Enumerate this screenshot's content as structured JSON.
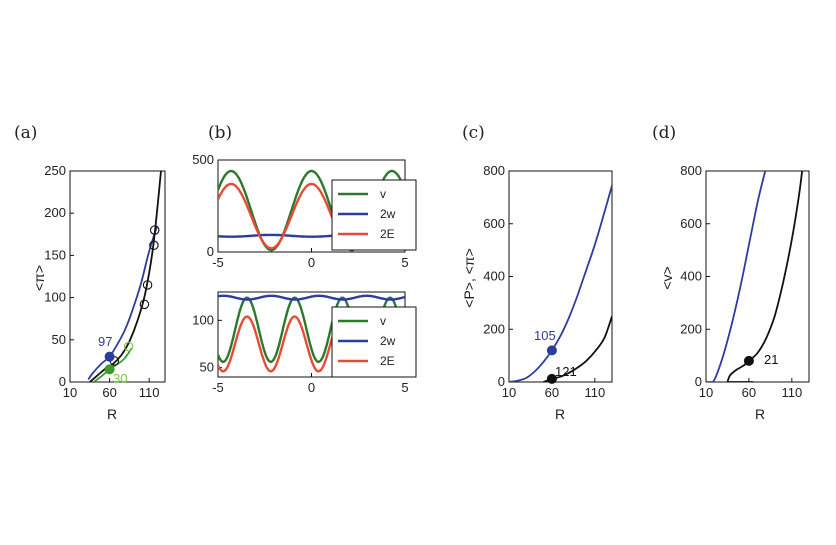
{
  "panel_labels": [
    "(a)",
    "(b)",
    "(c)",
    "(d)"
  ],
  "colors": {
    "black": "#111111",
    "blue": "#2c3d9e",
    "green": "#3f9a2f",
    "light_green": "#77c64a",
    "dark_green": "#2a7a2a",
    "red": "#e84a38"
  },
  "chart_data": [
    {
      "id": "a",
      "type": "line",
      "xlabel": "R",
      "ylabel": "<π>",
      "xlim": [
        10,
        130
      ],
      "ylim": [
        0,
        250
      ],
      "xticks": [
        10,
        60,
        110
      ],
      "yticks": [
        0,
        50,
        100,
        150,
        200,
        250
      ],
      "series": [
        {
          "color": "blue",
          "x": [
            33,
            40,
            50,
            60,
            70,
            80,
            90,
            100,
            110,
            120
          ],
          "y": [
            3,
            12,
            22,
            30,
            45,
            63,
            88,
            118,
            155,
            185
          ]
        },
        {
          "color": "black",
          "x": [
            35,
            45,
            55,
            65,
            75,
            85,
            95,
            105,
            115,
            125
          ],
          "y": [
            0,
            8,
            16,
            22,
            32,
            48,
            72,
            105,
            160,
            250
          ]
        },
        {
          "color": "green",
          "x": [
            40,
            50,
            60,
            68,
            78,
            88
          ],
          "y": [
            0,
            7,
            15,
            20,
            27,
            40
          ]
        }
      ],
      "open_markers": [
        {
          "color": "black",
          "points": [
            [
              66,
              25
            ],
            [
              104,
              92
            ],
            [
              108,
              115
            ],
            [
              116,
              162
            ],
            [
              117,
              180
            ]
          ]
        },
        {
          "color": "light_green",
          "points": [
            [
              84,
              42
            ]
          ]
        }
      ],
      "filled_markers": [
        {
          "color": "blue",
          "x": 60,
          "y": 30
        },
        {
          "color": "green",
          "x": 60,
          "y": 15
        }
      ],
      "annotations": [
        {
          "text": "97",
          "color": "blue"
        },
        {
          "text": "30",
          "color": "light_green"
        }
      ]
    },
    {
      "id": "b-top",
      "type": "line",
      "xlim": [
        -5,
        5
      ],
      "ylim": [
        0,
        500
      ],
      "xticks": [
        -5,
        0,
        5
      ],
      "yticks": [
        0,
        500
      ],
      "legend": [
        "v",
        "2w",
        "2E"
      ],
      "series": [
        {
          "name": "v",
          "color": "dark_green",
          "shape": "cos",
          "offset": 225,
          "amp": 215,
          "period": 4.3,
          "phase": 0
        },
        {
          "name": "2w",
          "color": "blue",
          "shape": "cos",
          "offset": 88,
          "amp": 5,
          "period": 4.3,
          "phase": 2.15
        },
        {
          "name": "2E",
          "color": "red",
          "shape": "cos",
          "offset": 195,
          "amp": 175,
          "period": 4.3,
          "phase": 0
        }
      ]
    },
    {
      "id": "b-bottom",
      "type": "line",
      "xlim": [
        -5,
        5
      ],
      "ylim": [
        40,
        130
      ],
      "xticks": [
        -5,
        0,
        5
      ],
      "yticks": [
        50,
        100
      ],
      "legend": [
        "v",
        "2w",
        "2E"
      ],
      "series": [
        {
          "name": "v",
          "color": "dark_green",
          "shape": "cos",
          "offset": 90,
          "amp": 34,
          "period": 2.55,
          "phase": -0.9
        },
        {
          "name": "2w",
          "color": "blue",
          "shape": "cos",
          "offset": 124,
          "amp": 2,
          "period": 2.55,
          "phase": 0.4
        },
        {
          "name": "2E",
          "color": "red",
          "shape": "cos",
          "offset": 75,
          "amp": 29,
          "period": 2.55,
          "phase": -0.9
        }
      ]
    },
    {
      "id": "c",
      "type": "line",
      "xlabel": "R",
      "ylabel": "<P>, <π>",
      "xlim": [
        10,
        130
      ],
      "ylim": [
        0,
        800
      ],
      "xticks": [
        10,
        60,
        110
      ],
      "yticks": [
        0,
        200,
        400,
        600,
        800
      ],
      "series": [
        {
          "color": "blue",
          "x": [
            10,
            20,
            30,
            40,
            50,
            60,
            70,
            80,
            90,
            100,
            110,
            120,
            130
          ],
          "y": [
            0,
            5,
            15,
            40,
            75,
            120,
            175,
            245,
            330,
            425,
            520,
            630,
            745
          ]
        },
        {
          "color": "black",
          "x": [
            50,
            60,
            70,
            80,
            90,
            100,
            110,
            120,
            125,
            130
          ],
          "y": [
            0,
            12,
            20,
            35,
            55,
            80,
            115,
            160,
            200,
            250
          ]
        }
      ],
      "filled_markers": [
        {
          "color": "blue",
          "x": 60,
          "y": 120
        },
        {
          "color": "black",
          "x": 60,
          "y": 12
        }
      ],
      "annotations": [
        {
          "text": "105",
          "color": "blue"
        },
        {
          "text": "121",
          "color": "black"
        }
      ]
    },
    {
      "id": "d",
      "type": "line",
      "xlabel": "R",
      "ylabel": "<v>",
      "xlim": [
        10,
        130
      ],
      "ylim": [
        0,
        800
      ],
      "xticks": [
        10,
        60,
        110
      ],
      "yticks": [
        0,
        200,
        400,
        600,
        800
      ],
      "series": [
        {
          "color": "blue",
          "x": [
            10,
            15,
            20,
            30,
            40,
            50,
            60,
            70,
            79
          ],
          "y": [
            0,
            0,
            10,
            100,
            220,
            360,
            520,
            680,
            800
          ]
        },
        {
          "color": "black",
          "x": [
            35,
            38,
            45,
            55,
            60,
            70,
            80,
            90,
            100,
            110,
            118,
            122
          ],
          "y": [
            0,
            25,
            45,
            65,
            80,
            110,
            165,
            250,
            380,
            540,
            700,
            800
          ]
        },
        {
          "color": "black",
          "x": [
            35,
            65
          ],
          "y": [
            0,
            0
          ]
        }
      ],
      "filled_markers": [
        {
          "color": "black",
          "x": 60,
          "y": 80
        }
      ],
      "annotations": [
        {
          "text": "21",
          "color": "black"
        }
      ]
    }
  ]
}
